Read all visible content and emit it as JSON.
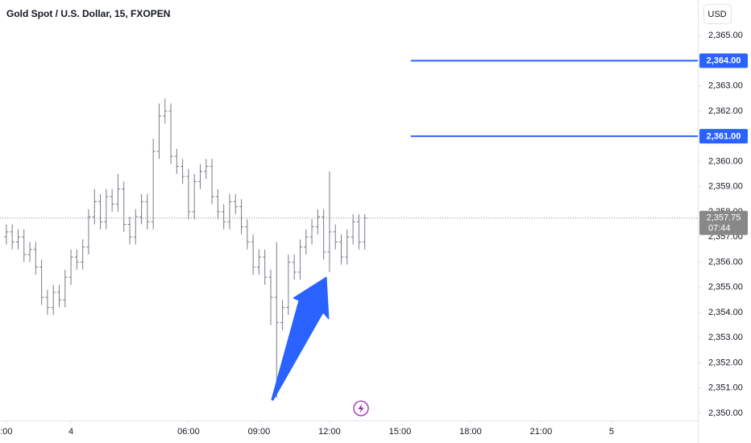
{
  "chart_data": {
    "type": "ohlc",
    "title": "Gold Spot / U.S. Dollar, 15, FXOPEN",
    "currency": "USD",
    "color": "#787b86",
    "xlim": [
      -2.02,
      27.67
    ],
    "ylim": [
      2349.71,
      2366.41
    ],
    "grid": false,
    "xticks": [
      {
        "value": -1.75,
        "label": ":00"
      },
      {
        "value": 1,
        "label": "4"
      },
      {
        "value": 6,
        "label": "06:00"
      },
      {
        "value": 9,
        "label": "09:00"
      },
      {
        "value": 12,
        "label": "12:00"
      },
      {
        "value": 15,
        "label": "15:00"
      },
      {
        "value": 18,
        "label": "18:00"
      },
      {
        "value": 21,
        "label": "21:00"
      },
      {
        "value": 24,
        "label": "5"
      }
    ],
    "yticks": [
      {
        "value": 2350,
        "label": "2,350.00"
      },
      {
        "value": 2351,
        "label": "2,351.00"
      },
      {
        "value": 2352,
        "label": "2,352.00"
      },
      {
        "value": 2353,
        "label": "2,353.00"
      },
      {
        "value": 2354,
        "label": "2,354.00"
      },
      {
        "value": 2355,
        "label": "2,355.00"
      },
      {
        "value": 2356,
        "label": "2,356.00"
      },
      {
        "value": 2357,
        "label": "2,357.00"
      },
      {
        "value": 2358,
        "label": "2,358.00"
      },
      {
        "value": 2359,
        "label": "2,359.00"
      },
      {
        "value": 2360,
        "label": "2,360.00"
      },
      {
        "value": 2362,
        "label": "2,362.00"
      },
      {
        "value": 2363,
        "label": "2,363.00"
      },
      {
        "value": 2365,
        "label": "2,365.00"
      }
    ],
    "x": [
      -1.75,
      -1.5,
      -1.25,
      -1,
      -0.75,
      -0.5,
      -0.25,
      0,
      0.25,
      0.5,
      0.75,
      1,
      1.25,
      1.5,
      1.75,
      2,
      2.25,
      2.5,
      2.75,
      3,
      3.25,
      3.5,
      3.75,
      4,
      4.25,
      4.5,
      4.75,
      5,
      5.25,
      5.5,
      5.75,
      6,
      6.25,
      6.5,
      6.75,
      7,
      7.25,
      7.5,
      7.75,
      8,
      8.25,
      8.5,
      8.75,
      9,
      9.25,
      9.5,
      9.75,
      10,
      10.25,
      10.5,
      10.75,
      11,
      11.25,
      11.5,
      11.75,
      12,
      12.25,
      12.5,
      12.75,
      13,
      13.25,
      13.5
    ],
    "open": [
      2357.0,
      2357.2,
      2356.8,
      2357.0,
      2356.3,
      2356.5,
      2355.8,
      2354.6,
      2354.2,
      2354.8,
      2354.5,
      2355.4,
      2356.2,
      2356.0,
      2356.6,
      2357.8,
      2358.4,
      2357.6,
      2358.6,
      2358.3,
      2358.9,
      2357.5,
      2357.0,
      2357.8,
      2358.4,
      2357.6,
      2360.4,
      2361.8,
      2362.0,
      2360.2,
      2359.8,
      2359.4,
      2358.0,
      2359.2,
      2359.6,
      2359.8,
      2358.6,
      2358.0,
      2357.6,
      2358.4,
      2358.2,
      2357.4,
      2356.8,
      2355.8,
      2356.2,
      2355.4,
      2354.6,
      2353.6,
      2354.2,
      2356.0,
      2355.6,
      2356.6,
      2357.0,
      2357.4,
      2357.8,
      2356.4,
      2357.2,
      2356.8,
      2356.2,
      2357.0,
      2357.6,
      2356.8
    ],
    "high": [
      2357.5,
      2357.5,
      2357.3,
      2357.3,
      2356.8,
      2356.8,
      2356.1,
      2354.9,
      2355.1,
      2355.1,
      2355.7,
      2356.5,
      2356.5,
      2356.9,
      2358.1,
      2358.9,
      2358.7,
      2358.9,
      2358.9,
      2359.5,
      2359.2,
      2357.8,
      2358.1,
      2358.7,
      2358.7,
      2360.9,
      2362.3,
      2362.5,
      2362.3,
      2360.5,
      2360.1,
      2359.7,
      2359.5,
      2359.9,
      2360.1,
      2360.1,
      2358.9,
      2358.3,
      2358.7,
      2358.7,
      2358.5,
      2357.7,
      2357.1,
      2356.5,
      2356.5,
      2355.7,
      2356.8,
      2354.5,
      2356.3,
      2356.3,
      2356.9,
      2357.3,
      2357.7,
      2358.1,
      2358.1,
      2359.6,
      2357.5,
      2357.1,
      2357.3,
      2357.9,
      2357.9,
      2357.9
    ],
    "low": [
      2356.7,
      2356.5,
      2356.5,
      2356.0,
      2356.0,
      2355.5,
      2354.3,
      2353.9,
      2353.9,
      2354.2,
      2354.2,
      2355.1,
      2355.7,
      2355.7,
      2356.3,
      2357.5,
      2357.3,
      2357.3,
      2358.0,
      2358.0,
      2357.2,
      2356.7,
      2356.7,
      2357.5,
      2357.3,
      2357.3,
      2360.1,
      2361.5,
      2359.9,
      2359.5,
      2359.1,
      2357.7,
      2357.7,
      2358.9,
      2359.3,
      2358.3,
      2357.7,
      2357.3,
      2357.3,
      2357.9,
      2357.1,
      2356.5,
      2355.5,
      2355.5,
      2355.1,
      2353.5,
      2350.6,
      2353.3,
      2353.9,
      2355.3,
      2355.3,
      2356.3,
      2356.7,
      2357.1,
      2356.1,
      2355.6,
      2356.5,
      2355.9,
      2355.9,
      2356.7,
      2356.5,
      2356.5
    ],
    "close": [
      2357.2,
      2356.8,
      2357.0,
      2356.3,
      2356.5,
      2355.8,
      2354.6,
      2354.2,
      2354.8,
      2354.5,
      2355.4,
      2356.2,
      2356.0,
      2356.6,
      2357.8,
      2358.4,
      2357.6,
      2358.6,
      2358.3,
      2358.9,
      2357.5,
      2357.0,
      2357.8,
      2358.4,
      2357.6,
      2360.4,
      2361.8,
      2362.0,
      2360.2,
      2359.8,
      2359.4,
      2358.0,
      2359.2,
      2359.6,
      2359.8,
      2358.6,
      2358.0,
      2357.6,
      2358.4,
      2358.2,
      2357.4,
      2356.8,
      2355.8,
      2356.2,
      2355.4,
      2354.6,
      2353.6,
      2354.2,
      2356.0,
      2355.6,
      2356.6,
      2357.0,
      2357.4,
      2357.8,
      2356.4,
      2357.2,
      2356.8,
      2356.2,
      2357.0,
      2357.6,
      2356.8,
      2357.75
    ],
    "line_color": "#2962ff",
    "horizontal_lines": [
      {
        "value": 2364,
        "label": "2,364.00",
        "x_start": 15.46
      },
      {
        "value": 2361,
        "label": "2,361.00",
        "x_start": 15.46
      }
    ],
    "last_price": {
      "value": 2357.75,
      "label": "2,357.75",
      "countdown": "07:44",
      "color": "#888888"
    }
  }
}
